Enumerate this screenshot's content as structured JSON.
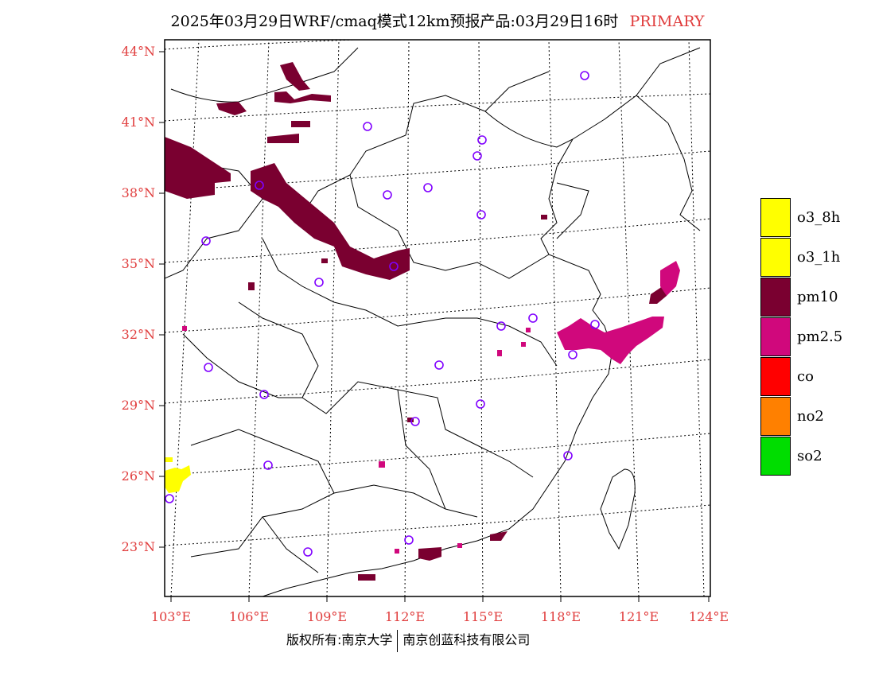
{
  "title": {
    "main": "2025年03月29日WRF/cmaq模式12km预报产品:03月29日16时",
    "badge": "PRIMARY"
  },
  "axes": {
    "lat_labels": [
      "44°N",
      "41°N",
      "38°N",
      "35°N",
      "32°N",
      "29°N",
      "26°N",
      "23°N"
    ],
    "lon_labels": [
      "103°E",
      "106°E",
      "109°E",
      "112°E",
      "115°E",
      "118°E",
      "121°E",
      "124°E"
    ]
  },
  "legend": {
    "items": [
      {
        "label": "o3_8h",
        "color": "#ffff00"
      },
      {
        "label": "o3_1h",
        "color": "#ffff00"
      },
      {
        "label": "pm10",
        "color": "#7a0030"
      },
      {
        "label": "pm2.5",
        "color": "#d0087c"
      },
      {
        "label": "co",
        "color": "#ff0000"
      },
      {
        "label": "no2",
        "color": "#ff8000"
      },
      {
        "label": "so2",
        "color": "#00dd00"
      }
    ]
  },
  "copyright": {
    "left": "版权所有:南京大学",
    "right": "南京创蓝科技有限公司"
  },
  "colors": {
    "label_red": "#e03c3c",
    "pm10": "#7a0030",
    "pm25": "#d0087c",
    "o3": "#ffff00",
    "station": "#8000ff"
  }
}
